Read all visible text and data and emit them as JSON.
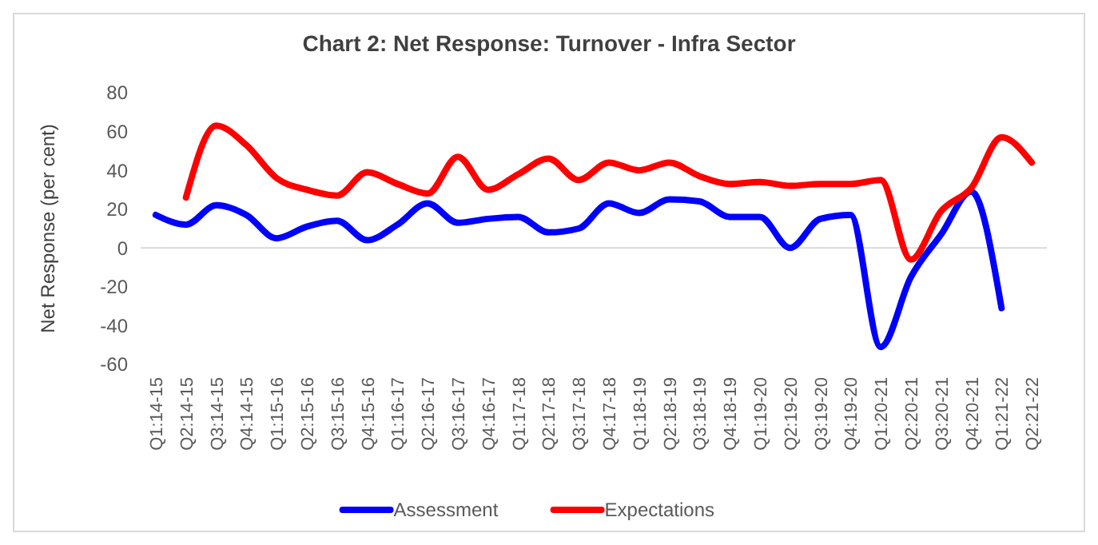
{
  "chart_data": {
    "type": "line",
    "title": "Chart 2: Net Response: Turnover - Infra Sector",
    "ylabel": "Net Response (per cent)",
    "categories": [
      "Q1:14-15",
      "Q2:14-15",
      "Q3:14-15",
      "Q4:14-15",
      "Q1:15-16",
      "Q2:15-16",
      "Q3:15-16",
      "Q4:15-16",
      "Q1:16-17",
      "Q2:16-17",
      "Q3:16-17",
      "Q4:16-17",
      "Q1:17-18",
      "Q2:17-18",
      "Q3:17-18",
      "Q4:17-18",
      "Q1:18-19",
      "Q2:18-19",
      "Q3:18-19",
      "Q4:18-19",
      "Q1:19-20",
      "Q2:19-20",
      "Q3:19-20",
      "Q4:19-20",
      "Q1:20-21",
      "Q2:20-21",
      "Q3:20-21",
      "Q4:20-21",
      "Q1:21-22",
      "Q2:21-22"
    ],
    "series": [
      {
        "name": "Assessment",
        "color": "#0000ff",
        "values": [
          17,
          12,
          22,
          17,
          5,
          11,
          14,
          4,
          12,
          23,
          13,
          15,
          16,
          8,
          10,
          23,
          18,
          25,
          24,
          16,
          16,
          0,
          15,
          17,
          -51,
          -15,
          7,
          29,
          -31,
          null
        ]
      },
      {
        "name": "Expectations",
        "color": "#ff0000",
        "values": [
          null,
          26,
          63,
          53,
          36,
          30,
          27,
          39,
          33,
          28,
          47,
          30,
          38,
          46,
          35,
          44,
          40,
          44,
          37,
          33,
          34,
          32,
          33,
          33,
          35,
          -6,
          19,
          31,
          57,
          44
        ]
      }
    ],
    "ylim": [
      -60,
      80
    ],
    "yticks": [
      -60,
      -40,
      -20,
      0,
      20,
      40,
      60,
      80
    ],
    "legend": "bottom",
    "marker": "none",
    "line_style": "solid"
  }
}
